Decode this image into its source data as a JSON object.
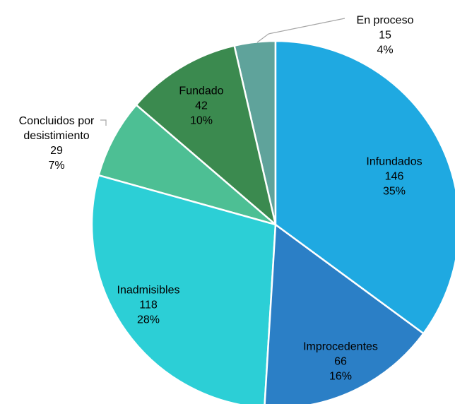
{
  "chart_data": {
    "type": "pie",
    "categories": [
      "Infundados",
      "Improcedentes",
      "Inadmisibles",
      "Concluidos por desistimiento",
      "Fundado",
      "En proceso"
    ],
    "values": [
      146,
      66,
      118,
      29,
      42,
      15
    ],
    "percent_labels": [
      "35%",
      "16%",
      "28%",
      "7%",
      "10%",
      "4%"
    ],
    "colors": [
      "#1fa9e1",
      "#2b7fc6",
      "#2ccfd6",
      "#4dbf94",
      "#3b8a4f",
      "#5fa39b"
    ]
  }
}
